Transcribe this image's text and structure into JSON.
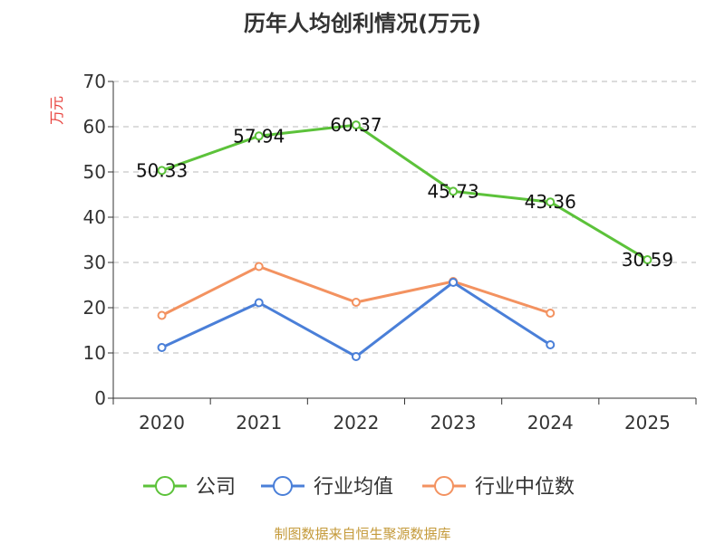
{
  "chart_data": {
    "type": "line",
    "title": "历年人均创利情况(万元)",
    "ylabel": "万元",
    "xlabel": "",
    "ylim": [
      0,
      70
    ],
    "yticks": [
      0,
      10,
      20,
      30,
      40,
      50,
      60,
      70
    ],
    "categories": [
      "2020",
      "2021",
      "2022",
      "2023",
      "2024",
      "2025"
    ],
    "grid": true,
    "legend_position": "bottom",
    "series": [
      {
        "name": "公司",
        "color": "#5cc23a",
        "values": [
          50.33,
          57.94,
          60.37,
          45.73,
          43.36,
          30.59
        ],
        "labels": [
          "50.33",
          "57.94",
          "60.37",
          "45.73",
          "43.36",
          "30.59"
        ]
      },
      {
        "name": "行业均值",
        "color": "#4a7fd8",
        "values": [
          11.2,
          21.1,
          9.2,
          25.6,
          11.8,
          null
        ]
      },
      {
        "name": "行业中位数",
        "color": "#f39260",
        "values": [
          18.3,
          29.1,
          21.2,
          25.8,
          18.8,
          null
        ]
      }
    ],
    "source": "制图数据来自恒生聚源数据库"
  }
}
